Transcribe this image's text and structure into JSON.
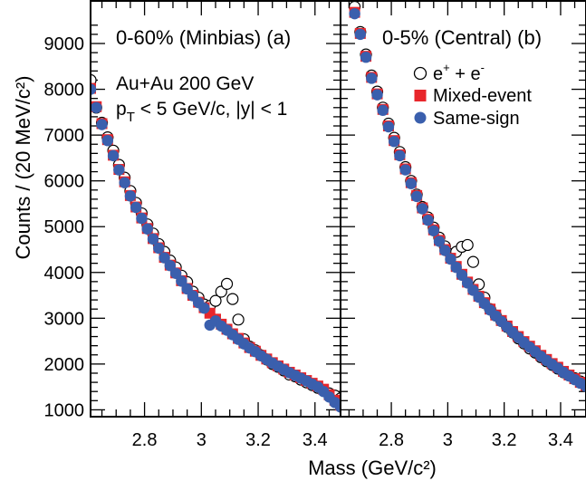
{
  "chart_data": {
    "type": "scatter",
    "xlabel": "Mass (GeV/c²)",
    "ylabel": "Counts / (20 MeV/c²)",
    "ylim": [
      850,
      9950
    ],
    "yticks": [
      "1000",
      "2000",
      "3000",
      "4000",
      "5000",
      "6000",
      "7000",
      "8000",
      "9000"
    ],
    "xticks": [
      "2.8",
      "3",
      "3.2",
      "3.4"
    ],
    "info": {
      "line1": "Au+Au 200 GeV",
      "line2_prefix": "p",
      "line2_sub": "T",
      "line2_rest": " < 5 GeV/c, |y| < 1"
    },
    "legend": {
      "placement": "upper-right of panel (b)",
      "entries": [
        {
          "label_base": "e",
          "label_sup1": "+",
          "label_mid": " + e",
          "label_sup2": "-",
          "marker": "open-circle",
          "color": "#000000"
        },
        {
          "label": "Mixed-event",
          "marker": "filled-square",
          "color": "#e8262b"
        },
        {
          "label": "Same-sign",
          "marker": "filled-circle",
          "color": "#3a5fad"
        }
      ]
    },
    "panels": [
      {
        "id": "a",
        "label": "0-60% (Minbias)  (a)",
        "xlim": [
          2.61,
          3.49
        ],
        "series": [
          {
            "name": "e+ + e-",
            "marker": "open-circle",
            "x": [
              2.61,
              2.63,
              2.65,
              2.67,
              2.69,
              2.71,
              2.73,
              2.75,
              2.77,
              2.79,
              2.81,
              2.83,
              2.85,
              2.87,
              2.89,
              2.91,
              2.93,
              2.95,
              2.97,
              2.99,
              3.01,
              3.03,
              3.05,
              3.07,
              3.09,
              3.11,
              3.13,
              3.15,
              3.17,
              3.19,
              3.21,
              3.23,
              3.25,
              3.27,
              3.29,
              3.31,
              3.33,
              3.35,
              3.37,
              3.39,
              3.41,
              3.43,
              3.45,
              3.47,
              3.49
            ],
            "y": [
              8200,
              7600,
              7270,
              6950,
              6660,
              6350,
              6070,
              5780,
              5520,
              5290,
              5050,
              4850,
              4620,
              4450,
              4260,
              4110,
              3930,
              3790,
              3580,
              3450,
              3300,
              3270,
              3380,
              3580,
              3750,
              3420,
              2970,
              2540,
              2380,
              2300,
              2190,
              2100,
              2000,
              1940,
              1860,
              1770,
              1730,
              1660,
              1600,
              1540,
              1480,
              1430,
              1360,
              1310,
              1250
            ]
          },
          {
            "name": "Mixed-event",
            "marker": "filled-square",
            "x": [
              2.61,
              2.63,
              2.65,
              2.67,
              2.69,
              2.71,
              2.73,
              2.75,
              2.77,
              2.79,
              2.81,
              2.83,
              2.85,
              2.87,
              2.89,
              2.91,
              2.93,
              2.95,
              2.97,
              2.99,
              3.01,
              3.03,
              3.05,
              3.07,
              3.09,
              3.11,
              3.13,
              3.15,
              3.17,
              3.19,
              3.21,
              3.23,
              3.25,
              3.27,
              3.29,
              3.31,
              3.33,
              3.35,
              3.37,
              3.39,
              3.41,
              3.43,
              3.45,
              3.47,
              3.49
            ],
            "y": [
              8020,
              7620,
              7250,
              6900,
              6560,
              6250,
              5980,
              5680,
              5430,
              5190,
              4960,
              4740,
              4540,
              4330,
              4160,
              3990,
              3820,
              3650,
              3500,
              3350,
              3230,
              3110,
              2980,
              2870,
              2760,
              2660,
              2560,
              2460,
              2360,
              2280,
              2190,
              2110,
              2030,
              1960,
              1890,
              1820,
              1760,
              1700,
              1640,
              1580,
              1520,
              1450,
              1330,
              1210,
              1100
            ]
          },
          {
            "name": "Same-sign",
            "marker": "filled-circle",
            "x": [
              2.61,
              2.63,
              2.65,
              2.67,
              2.69,
              2.71,
              2.73,
              2.75,
              2.77,
              2.79,
              2.81,
              2.83,
              2.85,
              2.87,
              2.89,
              2.91,
              2.93,
              2.95,
              2.97,
              2.99,
              3.01,
              3.03,
              3.05,
              3.07,
              3.09,
              3.11,
              3.13,
              3.15,
              3.17,
              3.19,
              3.21,
              3.23,
              3.25,
              3.27,
              3.29,
              3.31,
              3.33,
              3.35,
              3.37,
              3.39,
              3.41,
              3.43,
              3.45,
              3.47,
              3.49
            ],
            "y": [
              8000,
              7600,
              7230,
              6880,
              6550,
              6240,
              5960,
              5670,
              5420,
              5180,
              4950,
              4730,
              4530,
              4320,
              4150,
              3980,
              3810,
              3640,
              3490,
              3340,
              3220,
              2850,
              2940,
              2830,
              2740,
              2640,
              2540,
              2440,
              2350,
              2270,
              2180,
              2100,
              2020,
              1950,
              1880,
              1810,
              1750,
              1690,
              1630,
              1560,
              1500,
              1400,
              1280,
              1160,
              1060
            ]
          }
        ]
      },
      {
        "id": "b",
        "label": "0-5% (Central) (b)",
        "xlim": [
          2.62,
          3.49
        ],
        "series": [
          {
            "name": "e+ + e-",
            "marker": "open-circle",
            "x": [
              2.67,
              2.69,
              2.71,
              2.73,
              2.75,
              2.77,
              2.79,
              2.81,
              2.83,
              2.85,
              2.87,
              2.89,
              2.91,
              2.93,
              2.95,
              2.97,
              2.99,
              3.01,
              3.03,
              3.05,
              3.07,
              3.09,
              3.11,
              3.13,
              3.15,
              3.17,
              3.19,
              3.21,
              3.23,
              3.25,
              3.27,
              3.29,
              3.31,
              3.33,
              3.35,
              3.37,
              3.39,
              3.41,
              3.43,
              3.45,
              3.47,
              3.49
            ],
            "y": [
              9800,
              9250,
              8760,
              8300,
              7950,
              7600,
              7250,
              6940,
              6630,
              6300,
              6000,
              5700,
              5430,
              5200,
              4980,
              4760,
              4570,
              4400,
              4450,
              4560,
              4600,
              4230,
              3740,
              3450,
              3200,
              3060,
              2940,
              2810,
              2690,
              2560,
              2450,
              2340,
              2250,
              2150,
              2060,
              1980,
              1900,
              1820,
              1750,
              1690,
              1620,
              1550
            ]
          },
          {
            "name": "Mixed-event",
            "marker": "filled-square",
            "x": [
              2.67,
              2.69,
              2.71,
              2.73,
              2.75,
              2.77,
              2.79,
              2.81,
              2.83,
              2.85,
              2.87,
              2.89,
              2.91,
              2.93,
              2.95,
              2.97,
              2.99,
              3.01,
              3.03,
              3.05,
              3.07,
              3.09,
              3.11,
              3.13,
              3.15,
              3.17,
              3.19,
              3.21,
              3.23,
              3.25,
              3.27,
              3.29,
              3.31,
              3.33,
              3.35,
              3.37,
              3.39,
              3.41,
              3.43,
              3.45,
              3.47,
              3.49
            ],
            "y": [
              9680,
              9220,
              8720,
              8260,
              7900,
              7560,
              7200,
              6880,
              6570,
              6260,
              5960,
              5680,
              5410,
              5160,
              4930,
              4700,
              4500,
              4310,
              4130,
              3960,
              3790,
              3630,
              3480,
              3340,
              3200,
              3070,
              2950,
              2830,
              2710,
              2600,
              2490,
              2390,
              2290,
              2190,
              2100,
              2010,
              1930,
              1840,
              1760,
              1680,
              1600,
              1530
            ]
          },
          {
            "name": "Same-sign",
            "marker": "filled-circle",
            "x": [
              2.67,
              2.69,
              2.71,
              2.73,
              2.75,
              2.77,
              2.79,
              2.81,
              2.83,
              2.85,
              2.87,
              2.89,
              2.91,
              2.93,
              2.95,
              2.97,
              2.99,
              3.01,
              3.03,
              3.05,
              3.07,
              3.09,
              3.11,
              3.13,
              3.15,
              3.17,
              3.19,
              3.21,
              3.23,
              3.25,
              3.27,
              3.29,
              3.31,
              3.33,
              3.35,
              3.37,
              3.39,
              3.41,
              3.43,
              3.45,
              3.47,
              3.49
            ],
            "y": [
              9650,
              9200,
              8700,
              8240,
              7880,
              7540,
              7180,
              6860,
              6550,
              6240,
              5940,
              5660,
              5390,
              5140,
              4910,
              4680,
              4480,
              4290,
              4110,
              3940,
              3770,
              3610,
              3460,
              3320,
              3180,
              3050,
              2930,
              2810,
              2690,
              2580,
              2470,
              2370,
              2270,
              2170,
              2080,
              1990,
              1910,
              1820,
              1740,
              1660,
              1580,
              1510
            ]
          }
        ]
      }
    ]
  }
}
